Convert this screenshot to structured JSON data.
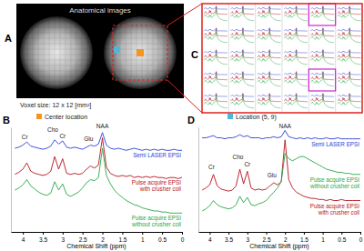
{
  "chart_data": [
    {
      "type": "line",
      "x_label": "Chemical Shift (ppm)",
      "x": [
        4.2,
        4.1,
        4,
        3.9,
        3.8,
        3.7,
        3.6,
        3.5,
        3.4,
        3.3,
        3.2,
        3.1,
        3,
        2.9,
        2.8,
        2.7,
        2.6,
        2.5,
        2.4,
        2.3,
        2.2,
        2.1,
        2,
        1.9,
        1.8,
        1.7,
        1.6,
        1.5,
        1.4,
        1.3,
        1.2,
        1.1,
        1,
        0.9,
        0.8,
        0.7,
        0.6,
        0.5,
        0.4,
        0.3,
        0.2,
        0.1,
        0
      ],
      "xlim": [
        4.3,
        0
      ],
      "xticks": [
        4,
        3.5,
        3,
        2.5,
        2,
        1.5,
        1,
        0.5,
        0
      ],
      "ylim": [
        0,
        100
      ],
      "tick_labels": "x",
      "series": [
        {
          "name": "Semi LASER EPSI",
          "color": "#2c3fd6",
          "values": [
            80,
            81,
            83,
            86,
            82,
            81,
            80,
            79,
            80,
            82,
            88,
            84,
            87,
            81,
            80,
            81,
            80,
            79,
            81,
            83,
            82,
            84,
            95,
            83,
            80,
            79,
            80,
            79,
            78,
            79,
            80,
            79,
            78,
            79,
            78,
            79,
            78,
            79,
            78,
            78,
            79,
            78,
            78
          ]
        },
        {
          "name": "Pulse acquire EPSI with crusher coil",
          "color": "#b5121b",
          "values": [
            55,
            57,
            60,
            66,
            58,
            56,
            55,
            54,
            55,
            58,
            72,
            60,
            70,
            56,
            55,
            56,
            55,
            56,
            60,
            63,
            61,
            64,
            90,
            62,
            56,
            54,
            53,
            54,
            53,
            54,
            52,
            53,
            52,
            53,
            52,
            53,
            52,
            52,
            51,
            52,
            52,
            51,
            52
          ]
        },
        {
          "name": "Pulse acquire EPSI without crusher coil",
          "color": "#23a844",
          "values": [
            40,
            42,
            45,
            50,
            44,
            41,
            38,
            36,
            35,
            37,
            48,
            40,
            46,
            36,
            34,
            36,
            38,
            42,
            47,
            50,
            49,
            52,
            80,
            54,
            46,
            40,
            36,
            33,
            30,
            28,
            26,
            25,
            23,
            22,
            21,
            20,
            20,
            19,
            19,
            18,
            18,
            18,
            18
          ]
        }
      ],
      "annotations": [
        {
          "text": "Cr",
          "x": 3.95,
          "y": 89
        },
        {
          "text": "Cho",
          "x": 3.25,
          "y": 96
        },
        {
          "text": "Cr",
          "x": 3.0,
          "y": 90
        },
        {
          "text": "Glu",
          "x": 2.35,
          "y": 87
        },
        {
          "text": "NAA",
          "x": 2.0,
          "y": 99
        }
      ]
    },
    {
      "type": "line",
      "x_label": "Chemical Shift (ppm)",
      "x": [
        4.2,
        4.1,
        4,
        3.9,
        3.8,
        3.7,
        3.6,
        3.5,
        3.4,
        3.3,
        3.2,
        3.1,
        3,
        2.9,
        2.8,
        2.7,
        2.6,
        2.5,
        2.4,
        2.3,
        2.2,
        2.1,
        2,
        1.9,
        1.8,
        1.7,
        1.6,
        1.5,
        1.4,
        1.3,
        1.2,
        1.1,
        1,
        0.9,
        0.8,
        0.7,
        0.6,
        0.5,
        0.4,
        0.3,
        0.2,
        0.1,
        0
      ],
      "xlim": [
        4.3,
        0
      ],
      "xticks": [
        4,
        3.5,
        3,
        2.5,
        2,
        1.5,
        1,
        0.5,
        0
      ],
      "ylim": [
        0,
        100
      ],
      "tick_labels": "x",
      "series": [
        {
          "name": "Semi LASER EPSI",
          "color": "#2c3fd6",
          "values": [
            90,
            90,
            91,
            92,
            90,
            90,
            89,
            90,
            90,
            91,
            93,
            91,
            92,
            90,
            90,
            90,
            89,
            90,
            90,
            91,
            90,
            91,
            97,
            91,
            90,
            89,
            90,
            89,
            90,
            89,
            90,
            89,
            89,
            90,
            89,
            89,
            90,
            89,
            89,
            89,
            89,
            89,
            89
          ]
        },
        {
          "name": "Pulse acquire EPSI with crusher coil",
          "color": "#b5121b",
          "values": [
            40,
            42,
            45,
            55,
            44,
            41,
            40,
            39,
            40,
            44,
            60,
            46,
            58,
            42,
            40,
            41,
            40,
            41,
            44,
            47,
            45,
            48,
            88,
            50,
            42,
            38,
            36,
            34,
            33,
            32,
            32,
            31,
            31,
            30,
            31,
            30,
            30,
            31,
            30,
            30,
            30,
            30,
            30
          ]
        },
        {
          "name": "Pulse acquire EPSI without crusher coil",
          "color": "#23a844",
          "values": [
            20,
            22,
            25,
            30,
            26,
            24,
            23,
            22,
            23,
            26,
            34,
            28,
            33,
            26,
            25,
            27,
            28,
            30,
            34,
            38,
            42,
            48,
            75,
            70,
            68,
            70,
            72,
            72,
            70,
            68,
            66,
            64,
            62,
            60,
            59,
            58,
            57,
            57,
            56,
            56,
            55,
            55,
            55
          ]
        }
      ],
      "annotations": [
        {
          "text": "Cr",
          "x": 3.95,
          "y": 60
        },
        {
          "text": "Cho",
          "x": 3.25,
          "y": 70
        },
        {
          "text": "Cr",
          "x": 3.0,
          "y": 63
        },
        {
          "text": "Glu",
          "x": 2.35,
          "y": 52
        },
        {
          "text": "NAA",
          "x": 2.0,
          "y": 99
        }
      ]
    }
  ],
  "figure": {
    "panel_labels": [
      "A",
      "B",
      "C",
      "D"
    ],
    "image_title": "Anatomical images",
    "voxel_size": "Voxel size: 12 x 12 [mm²]",
    "locations": [
      {
        "label": "Center location",
        "color": "#f7941d"
      },
      {
        "label": "Location (5, 9)",
        "color": "#4fb6dc"
      }
    ],
    "grid": {
      "rows": 5,
      "cols": 6,
      "highlight": [
        [
          0,
          4
        ],
        [
          3,
          4
        ]
      ]
    }
  }
}
